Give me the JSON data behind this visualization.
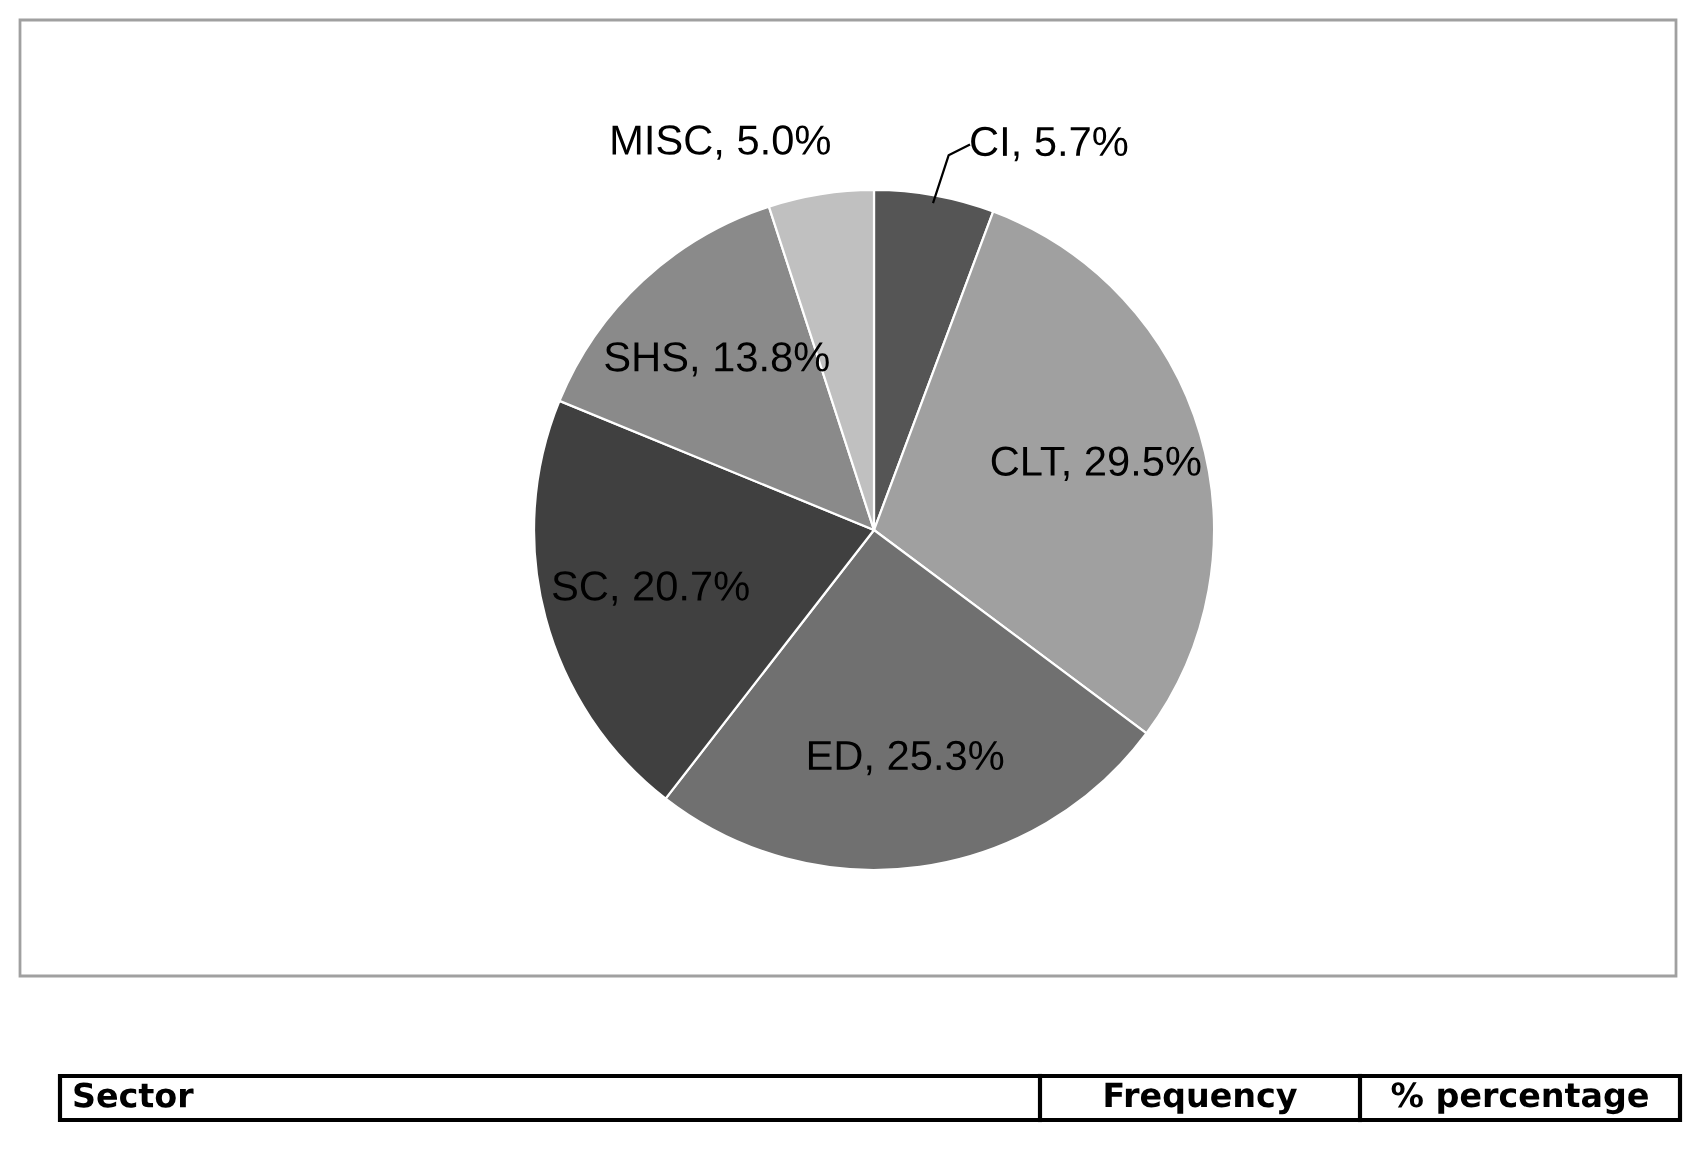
{
  "chart_data": {
    "type": "pie",
    "categories": [
      "CI",
      "CLT",
      "ED",
      "SC",
      "SHS",
      "MISC"
    ],
    "values": [
      5.7,
      29.5,
      25.3,
      20.7,
      13.8,
      5.0
    ],
    "value_labels": [
      "5.7%",
      "29.5%",
      "25.3%",
      "20.7%",
      "13.8%",
      "5.0%"
    ],
    "colors": [
      "#555555",
      "#a0a0a0",
      "#707070",
      "#404040",
      "#8a8a8a",
      "#c0c0c0"
    ],
    "annotations": [
      "Sector",
      "Frequency",
      "% percentage"
    ]
  }
}
